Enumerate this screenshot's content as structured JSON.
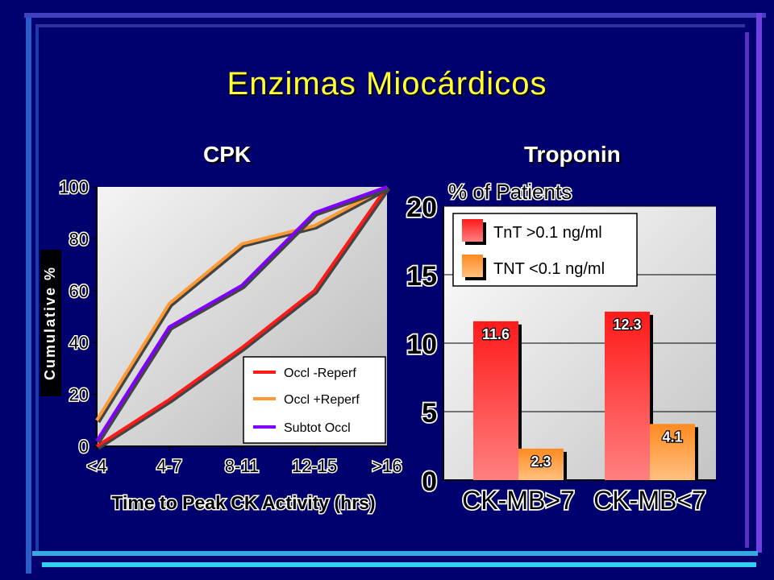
{
  "slide": {
    "title": "Enzimas Miocárdicos",
    "left_heading": "CPK",
    "right_heading": "Troponin"
  },
  "colors": {
    "background": "#00006e",
    "title": "#ffff33",
    "occl_reperf": "#ff1a1a",
    "occl_plus_reperf": "#ff9933",
    "subtot_occl": "#8000ff",
    "tnt_high": "#ff2020",
    "tnt_low": "#ffa040"
  },
  "chart_data": [
    {
      "type": "line",
      "title": "CPK",
      "xlabel": "Time to Peak CK Activity (hrs)",
      "ylabel": "Cumulative %",
      "categories": [
        "<4",
        "4-7",
        "8-11",
        "12-15",
        ">16"
      ],
      "ylim": [
        0,
        100
      ],
      "yticks": [
        "0",
        "20",
        "40",
        "60",
        "80",
        "100"
      ],
      "legend_position": "bottom-right",
      "grid": false,
      "series": [
        {
          "name": "Occl -Reperf",
          "values": [
            0,
            18,
            38,
            60,
            100
          ]
        },
        {
          "name": "Occl +Reperf",
          "values": [
            10,
            55,
            78,
            85,
            100
          ]
        },
        {
          "name": "Subtot Occl",
          "values": [
            2,
            46,
            62,
            90,
            100
          ]
        }
      ]
    },
    {
      "type": "bar",
      "title": "Troponin",
      "ylabel": "% of Patients",
      "categories": [
        "CK-MB>7",
        "CK-MB<7"
      ],
      "ylim": [
        0,
        20
      ],
      "yticks": [
        "0",
        "5",
        "10",
        "15",
        "20"
      ],
      "legend_position": "top-left",
      "grid": true,
      "series": [
        {
          "name": "TnT >0.1 ng/ml",
          "values": [
            11.6,
            12.3
          ],
          "labels": [
            "11.6",
            "12.3"
          ]
        },
        {
          "name": "TNT <0.1 ng/ml",
          "values": [
            2.3,
            4.1
          ],
          "labels": [
            "2.3",
            "4.1"
          ]
        }
      ]
    }
  ]
}
